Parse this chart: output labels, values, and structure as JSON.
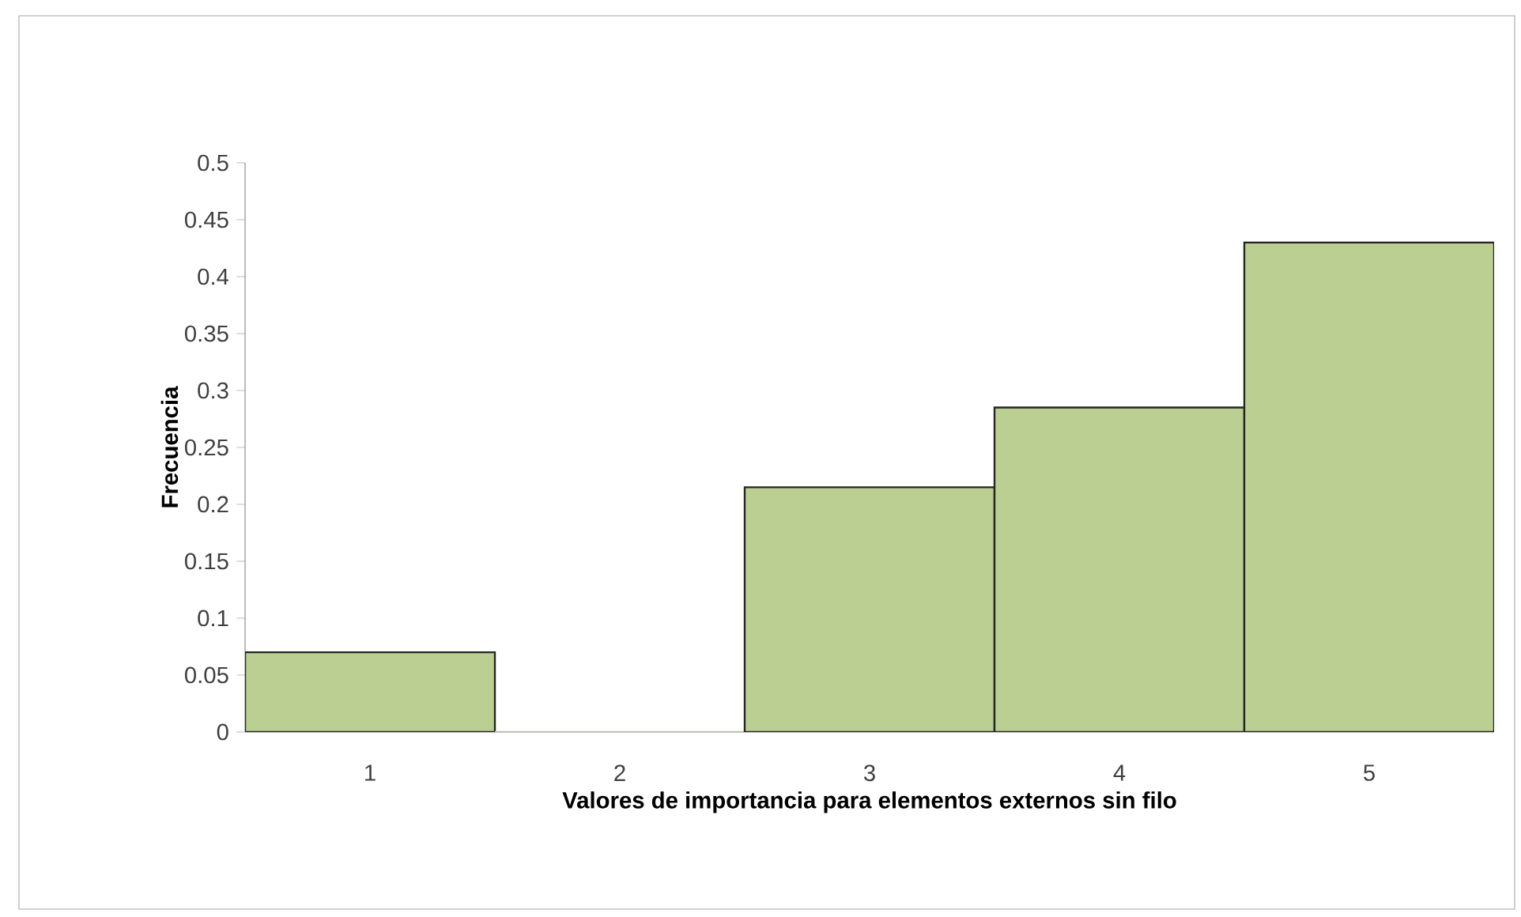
{
  "chart_data": {
    "type": "bar",
    "xlabel": "Valores de importancia para elementos externos sin filo",
    "ylabel": "Frecuencia",
    "categories": [
      "1",
      "2",
      "3",
      "4",
      "5"
    ],
    "values": [
      0.07,
      0,
      0.215,
      0.285,
      0.43
    ],
    "color": "#bccf92",
    "ylim": [
      0,
      0.5
    ],
    "yticks": [
      0,
      0.05,
      0.1,
      0.15,
      0.2,
      0.25,
      0.3,
      0.35,
      0.4,
      0.45,
      0.5
    ],
    "grid": false
  }
}
